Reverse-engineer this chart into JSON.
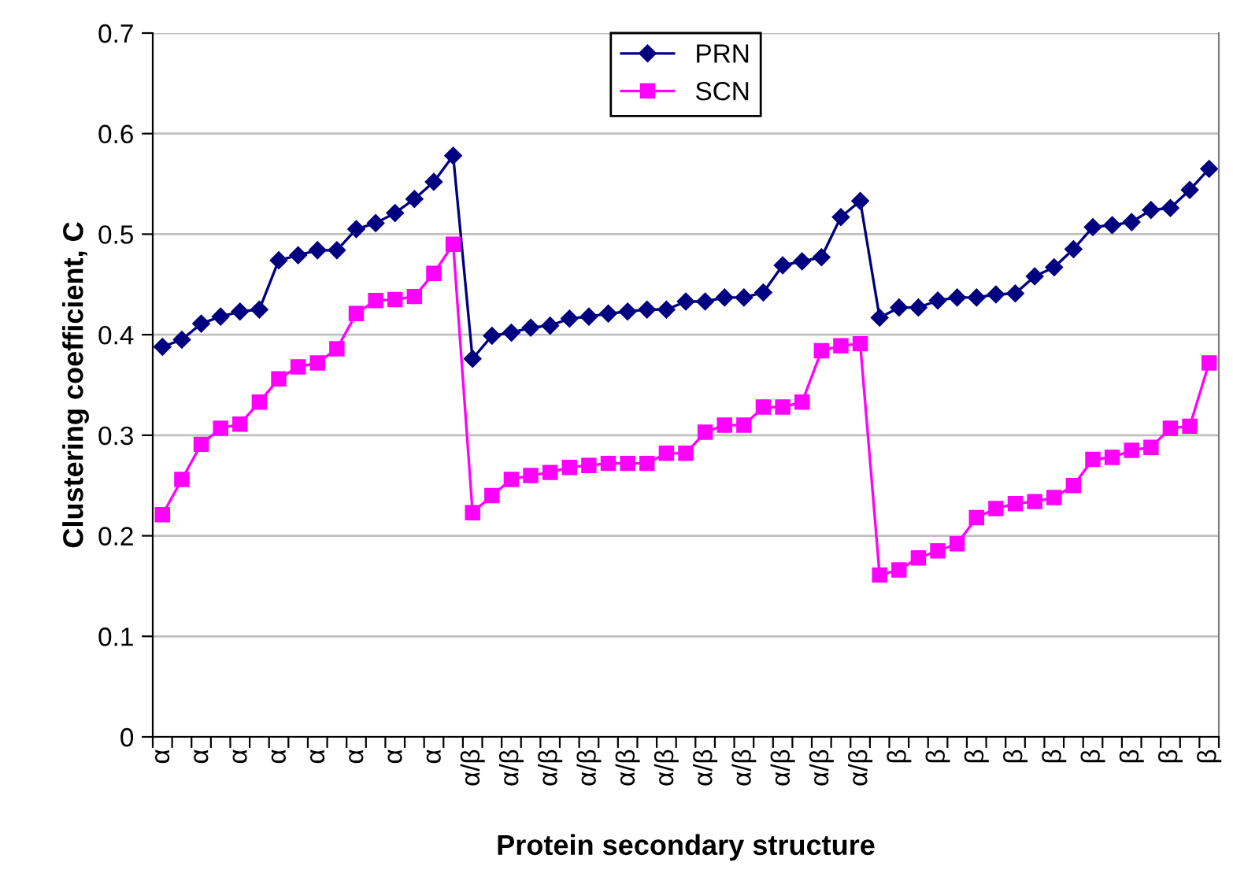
{
  "chart_data": {
    "type": "line",
    "xlabel": "Protein secondary structure",
    "ylabel": "Clustering coefficient, C",
    "categories": [
      "α",
      null,
      "α",
      null,
      "α",
      null,
      "α",
      null,
      "α",
      null,
      "α",
      null,
      "α",
      null,
      "α",
      null,
      "α/β",
      null,
      "α/β",
      null,
      "α/β",
      null,
      "α/β",
      null,
      "α/β",
      null,
      "α/β",
      null,
      "α/β",
      null,
      "α/β",
      null,
      "α/β",
      null,
      "α/β",
      null,
      "α/β",
      null,
      "β",
      null,
      "β",
      null,
      "β",
      null,
      "β",
      null,
      "β",
      null,
      "β",
      null,
      "β",
      null,
      "β",
      null,
      "β"
    ],
    "series": [
      {
        "name": "PRN",
        "color": "#000080",
        "marker": "diamond",
        "values": [
          0.388,
          0.395,
          0.411,
          0.418,
          0.423,
          0.425,
          0.474,
          0.479,
          0.484,
          0.484,
          0.505,
          0.511,
          0.521,
          0.535,
          0.552,
          0.578,
          0.376,
          0.399,
          0.402,
          0.407,
          0.409,
          0.416,
          0.418,
          0.421,
          0.423,
          0.425,
          0.425,
          0.433,
          0.433,
          0.437,
          0.437,
          0.442,
          0.469,
          0.473,
          0.477,
          0.517,
          0.533,
          0.417,
          0.427,
          0.427,
          0.434,
          0.437,
          0.437,
          0.44,
          0.441,
          0.458,
          0.467,
          0.485,
          0.507,
          0.509,
          0.512,
          0.524,
          0.526,
          0.544,
          0.565
        ]
      },
      {
        "name": "SCN",
        "color": "#ff00ff",
        "marker": "square",
        "values": [
          0.221,
          0.256,
          0.291,
          0.307,
          0.311,
          0.333,
          0.356,
          0.368,
          0.372,
          0.386,
          0.421,
          0.434,
          0.435,
          0.438,
          0.461,
          0.49,
          0.223,
          0.24,
          0.256,
          0.26,
          0.263,
          0.268,
          0.27,
          0.272,
          0.272,
          0.272,
          0.282,
          0.282,
          0.303,
          0.31,
          0.31,
          0.328,
          0.328,
          0.333,
          0.384,
          0.389,
          0.391,
          0.161,
          0.166,
          0.178,
          0.185,
          0.192,
          0.218,
          0.227,
          0.232,
          0.234,
          0.238,
          0.25,
          0.276,
          0.278,
          0.285,
          0.288,
          0.307,
          0.309,
          0.372
        ]
      }
    ],
    "ylim": [
      0,
      0.7
    ],
    "yticks": [
      0,
      0.1,
      0.2,
      0.3,
      0.4,
      0.5,
      0.6,
      0.7
    ],
    "grid": "y",
    "legend": "top"
  }
}
